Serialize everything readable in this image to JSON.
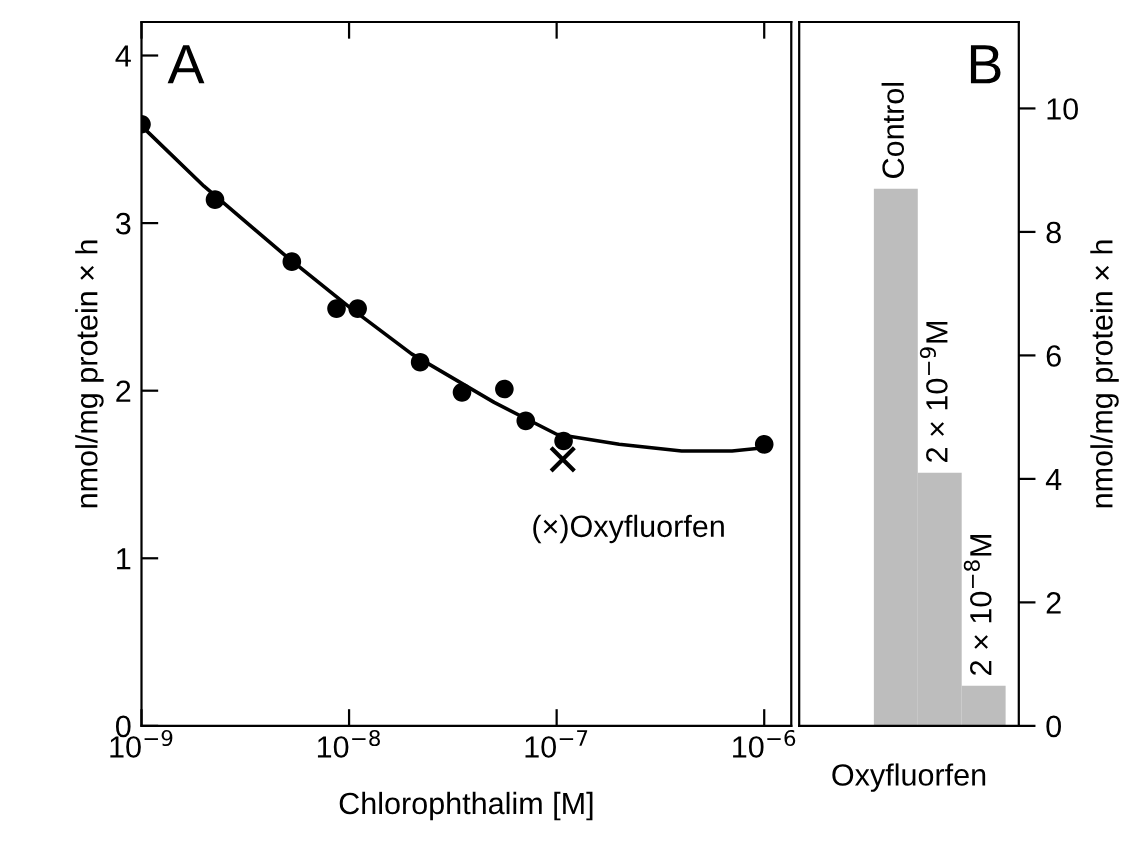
{
  "chart_data": [
    {
      "type": "scatter",
      "xlabel": "Chlorophthalim [M]",
      "ylabel": "nmol/mg protein × h",
      "log": "x",
      "xlim": [
        1e-09,
        1.35e-06
      ],
      "ylim": [
        0,
        4.2
      ],
      "xticks": [
        {
          "value": 1e-09,
          "label": "10$^{−9}$"
        },
        {
          "value": 1e-08,
          "label": "10$^{−8}$"
        },
        {
          "value": 1e-07,
          "label": "10$^{−7}$"
        },
        {
          "value": 1e-06,
          "label": "10$^{−6}$"
        }
      ],
      "yticks": [
        0,
        1,
        2,
        3,
        4
      ],
      "grid": false,
      "annotations": [
        "A",
        "(×)Oxyfluorfen"
      ],
      "series": [
        {
          "type": "scatter",
          "marker": "circle",
          "color": "#000000",
          "x": [
            1e-09,
            2.26e-09,
            5.3e-09,
            8.7e-09,
            1.1e-08,
            2.2e-08,
            3.5e-08,
            5.6e-08,
            7.1e-08,
            1.08e-07,
            1e-06
          ],
          "values": [
            3.59,
            3.14,
            2.77,
            2.49,
            2.49,
            2.17,
            1.99,
            2.01,
            1.82,
            1.7,
            1.68
          ]
        },
        {
          "type": "line",
          "marker": "none",
          "line_style": "solid",
          "color": "#000000",
          "x": [
            1e-09,
            2e-09,
            5e-09,
            1e-08,
            2e-08,
            5e-08,
            1e-07,
            2e-07,
            4e-07,
            7e-07,
            1e-06
          ],
          "values": [
            3.58,
            3.22,
            2.8,
            2.5,
            2.22,
            1.93,
            1.74,
            1.68,
            1.64,
            1.64,
            1.66
          ]
        },
        {
          "type": "scatter",
          "marker": "cross",
          "color": "#000000",
          "x": [
            1.07e-07
          ],
          "values": [
            1.59
          ]
        }
      ]
    },
    {
      "type": "bar",
      "categories": [
        null,
        null,
        null
      ],
      "xlabel": "Oxyfluorfen",
      "ylabel": "nmol/mg protein × h",
      "ylim": [
        0,
        11.4
      ],
      "yticks": [
        0,
        2,
        4,
        6,
        8,
        10
      ],
      "grid": false,
      "annotations": [
        "B",
        "Control",
        "2 × 10$^{−9}$M",
        "2 × 10$^{−8}$M"
      ],
      "series": [
        {
          "color": "#bdbdbd",
          "values": [
            8.7,
            4.1,
            0.65
          ]
        }
      ]
    }
  ]
}
